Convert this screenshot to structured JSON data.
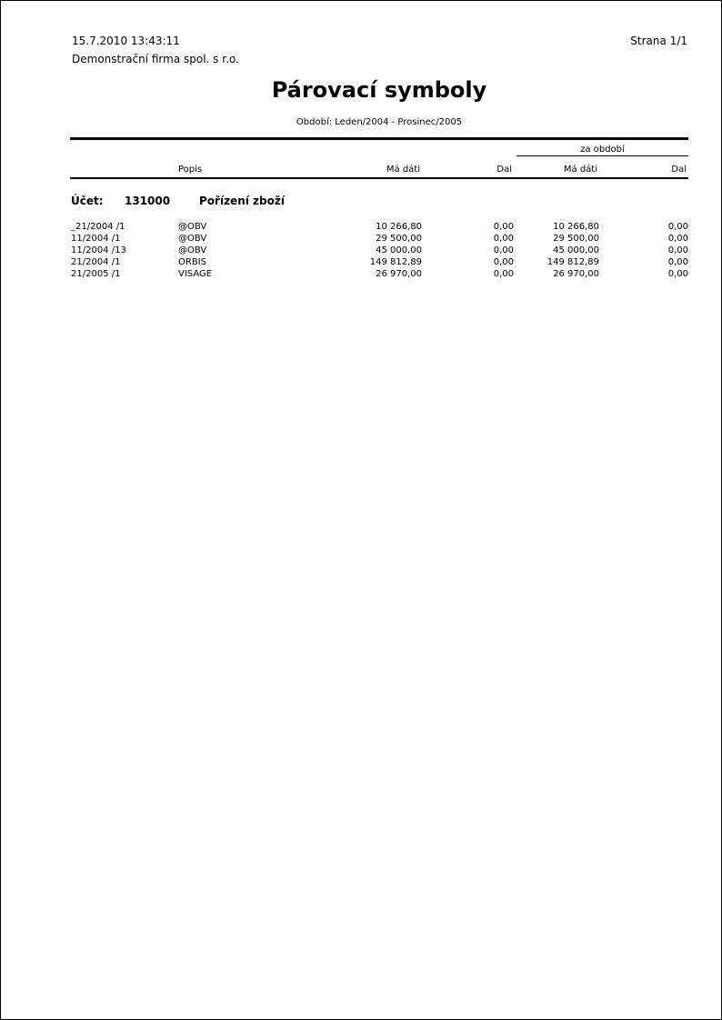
{
  "header": {
    "datetime": "15.7.2010 13:43:11",
    "company": "Demonstrační firma spol. s r.o.",
    "page": "Strana 1/1",
    "title": "Párovací symboly",
    "period": "Období: Leden/2004 - Prosinec/2005"
  },
  "columns": {
    "group_label": "za období",
    "popis": "Popis",
    "ma_dati": "Má dáti",
    "dal": "Dal",
    "ma_dati_period": "Má dáti",
    "dal_period": "Dal"
  },
  "account": {
    "label": "Účet:",
    "number": "131000",
    "name": "Pořízení zboží"
  },
  "rows": [
    {
      "symbol": "_21/2004 /1",
      "popis": "@OBV",
      "ma_dati": "10 266,80",
      "dal": "0,00",
      "ma_dati_period": "10 266,80",
      "dal_period": "0,00"
    },
    {
      "symbol": "11/2004 /1",
      "popis": "@OBV",
      "ma_dati": "29 500,00",
      "dal": "0,00",
      "ma_dati_period": "29 500,00",
      "dal_period": "0,00"
    },
    {
      "symbol": "11/2004 /13",
      "popis": "@OBV",
      "ma_dati": "45 000,00",
      "dal": "0,00",
      "ma_dati_period": "45 000,00",
      "dal_period": "0,00"
    },
    {
      "symbol": "21/2004 /1",
      "popis": "ORBIS",
      "ma_dati": "149 812,89",
      "dal": "0,00",
      "ma_dati_period": "149 812,89",
      "dal_period": "0,00"
    },
    {
      "symbol": "21/2005 /1",
      "popis": "VISAGE",
      "ma_dati": "26 970,00",
      "dal": "0,00",
      "ma_dati_period": "26 970,00",
      "dal_period": "0,00"
    }
  ]
}
